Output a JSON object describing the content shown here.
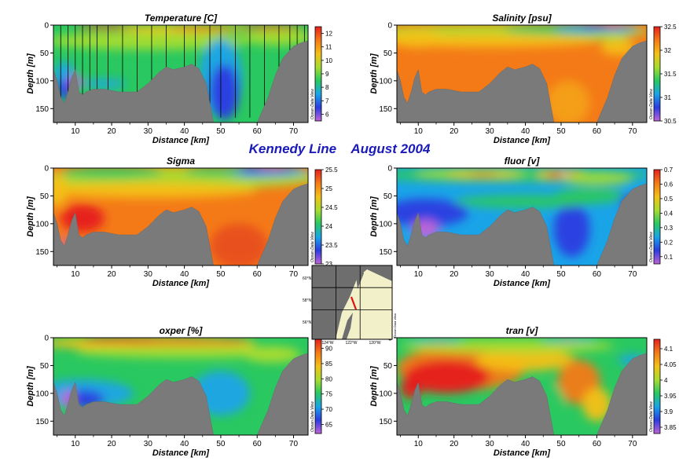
{
  "title": "Kennedy Line    August 2004",
  "chart_data": [
    {
      "type": "heatmap",
      "title": "Temperature [C]",
      "xlabel": "Distance [km]",
      "ylabel": "Depth [m]",
      "xlim": [
        4,
        74
      ],
      "ylim": [
        175,
        0
      ],
      "xticks": [
        10,
        20,
        30,
        40,
        50,
        60,
        70
      ],
      "yticks": [
        0,
        50,
        100,
        150
      ],
      "colorbar": {
        "min": 5.5,
        "max": 12.5,
        "ticks": [
          "12",
          "11",
          "10",
          "9",
          "8",
          "7",
          "6"
        ],
        "tick_values": [
          12,
          11,
          10,
          9,
          8,
          7,
          6
        ]
      },
      "watermark": "Ocean Data View",
      "station_x": [
        6,
        8,
        10,
        12,
        14,
        16,
        19,
        23,
        27,
        31,
        35,
        40,
        43,
        47,
        50,
        54,
        58,
        62,
        66,
        69,
        71,
        73
      ],
      "colors": [
        "#c064d8",
        "#2a3ce0",
        "#1aa4e8",
        "#2ac860",
        "#a8dc30",
        "#f4c018",
        "#f47a18",
        "#e62020"
      ]
    },
    {
      "type": "heatmap",
      "title": "Salinity [psu]",
      "xlabel": "Distance [km]",
      "ylabel": "Depth [m]",
      "xlim": [
        4,
        74
      ],
      "ylim": [
        175,
        0
      ],
      "xticks": [
        10,
        20,
        30,
        40,
        50,
        60,
        70
      ],
      "yticks": [
        0,
        50,
        100,
        150
      ],
      "colorbar": {
        "min": 30.5,
        "max": 32.5,
        "ticks": [
          "32.5",
          "32",
          "31.5",
          "31",
          "30.5"
        ],
        "tick_values": [
          32.5,
          32,
          31.5,
          31,
          30.5
        ]
      },
      "watermark": "Ocean Data View"
    },
    {
      "type": "heatmap",
      "title": "Sigma",
      "xlabel": "Distance [km]",
      "ylabel": "Depth [m]",
      "xlim": [
        4,
        74
      ],
      "ylim": [
        175,
        0
      ],
      "xticks": [
        10,
        20,
        30,
        40,
        50,
        60,
        70
      ],
      "yticks": [
        0,
        50,
        100,
        150
      ],
      "colorbar": {
        "min": 23,
        "max": 25.5,
        "ticks": [
          "25.5",
          "25",
          "24.5",
          "24",
          "23.5",
          "23"
        ],
        "tick_values": [
          25.5,
          25,
          24.5,
          24,
          23.5,
          23
        ]
      },
      "watermark": "Ocean Data View"
    },
    {
      "type": "heatmap",
      "title": "fluor [v]",
      "xlabel": "Distance [km]",
      "ylabel": "Depth [m]",
      "xlim": [
        4,
        74
      ],
      "ylim": [
        175,
        0
      ],
      "xticks": [
        10,
        20,
        30,
        40,
        50,
        60,
        70
      ],
      "yticks": [
        0,
        50,
        100,
        150
      ],
      "colorbar": {
        "min": 0.05,
        "max": 0.7,
        "ticks": [
          "0.7",
          "0.6",
          "0.5",
          "0.4",
          "0.3",
          "0.2",
          "0.1"
        ],
        "tick_values": [
          0.7,
          0.6,
          0.5,
          0.4,
          0.3,
          0.2,
          0.1
        ]
      },
      "watermark": "Ocean Data View"
    },
    {
      "type": "heatmap",
      "title": "oxper [%]",
      "xlabel": "Distance [km]",
      "ylabel": "Depth [m]",
      "xlim": [
        4,
        74
      ],
      "ylim": [
        175,
        0
      ],
      "xticks": [
        10,
        20,
        30,
        40,
        50,
        60,
        70
      ],
      "yticks": [
        0,
        50,
        100,
        150
      ],
      "colorbar": {
        "min": 62,
        "max": 93,
        "ticks": [
          "90",
          "85",
          "80",
          "75",
          "70",
          "65"
        ],
        "tick_values": [
          90,
          85,
          80,
          75,
          70,
          65
        ]
      },
      "watermark": "Ocean Data View"
    },
    {
      "type": "heatmap",
      "title": "tran [v]",
      "xlabel": "Distance [km]",
      "ylabel": "Depth [m]",
      "xlim": [
        4,
        74
      ],
      "ylim": [
        175,
        0
      ],
      "xticks": [
        10,
        20,
        30,
        40,
        50,
        60,
        70
      ],
      "yticks": [
        0,
        50,
        100,
        150
      ],
      "colorbar": {
        "min": 3.83,
        "max": 4.13,
        "ticks": [
          "4.1",
          "4.05",
          "4",
          "3.95",
          "3.9",
          "3.85"
        ],
        "tick_values": [
          4.1,
          4.05,
          4,
          3.95,
          3.9,
          3.85
        ]
      },
      "watermark": "Ocean Data View"
    }
  ],
  "bathymetry": {
    "x": [
      4,
      5,
      6,
      7,
      8,
      9,
      10,
      11,
      12,
      13,
      15,
      18,
      22,
      27,
      30,
      33,
      35,
      37,
      40,
      42,
      44,
      46,
      47,
      48,
      50,
      55,
      58,
      60,
      61,
      63,
      65,
      67,
      69,
      70,
      72,
      74
    ],
    "depth": [
      80,
      100,
      130,
      140,
      120,
      95,
      80,
      120,
      125,
      120,
      115,
      115,
      120,
      120,
      105,
      85,
      75,
      80,
      75,
      70,
      78,
      105,
      140,
      175,
      175,
      175,
      175,
      175,
      160,
      130,
      90,
      60,
      45,
      38,
      32,
      28
    ]
  },
  "map_inset": {
    "lat_labels": [
      "60°N",
      "58°N",
      "56°N"
    ],
    "lon_labels": [
      "124°W",
      "122°W",
      "120°W"
    ],
    "watermark": "Ocean Data View",
    "colors": {
      "land": "#6e6e6e",
      "sea": "#f2f0c8",
      "track": "#e01010"
    }
  }
}
